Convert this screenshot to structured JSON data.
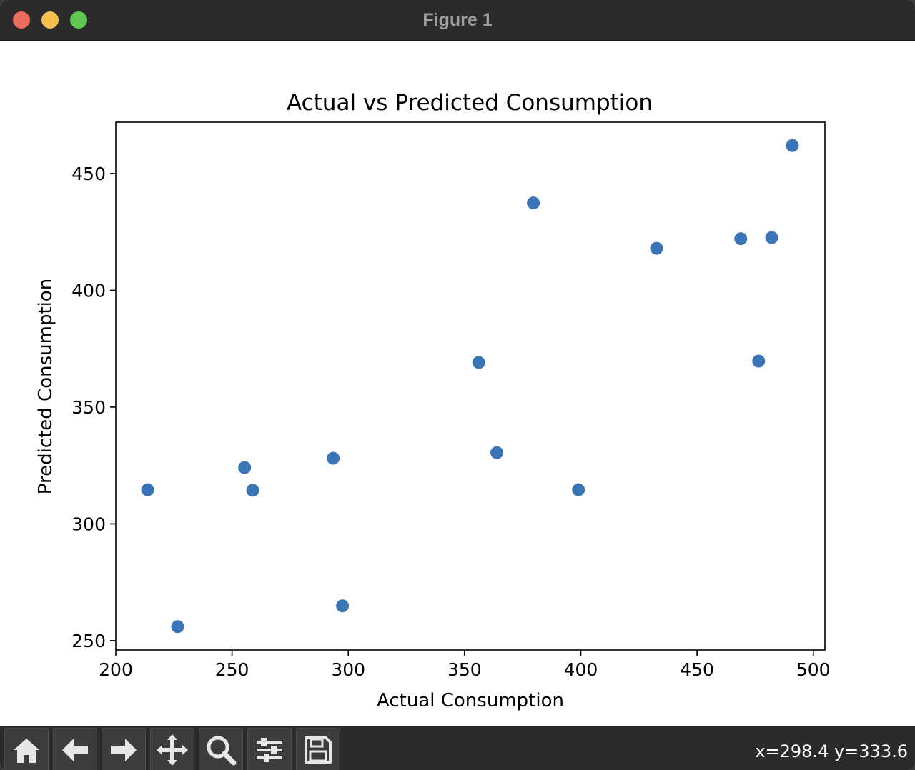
{
  "window": {
    "title": "Figure 1"
  },
  "toolbar": {
    "buttons": [
      {
        "name": "home-button",
        "icon": "home-icon"
      },
      {
        "name": "back-button",
        "icon": "arrow-left-icon"
      },
      {
        "name": "forward-button",
        "icon": "arrow-right-icon"
      },
      {
        "name": "pan-button",
        "icon": "move-icon"
      },
      {
        "name": "zoom-button",
        "icon": "magnifier-icon"
      },
      {
        "name": "configure-subplots-button",
        "icon": "sliders-icon"
      },
      {
        "name": "save-button",
        "icon": "floppy-disk-icon"
      }
    ],
    "coordinates": "x=298.4 y=333.6"
  },
  "chart_data": {
    "type": "scatter",
    "title": "Actual vs Predicted Consumption",
    "xlabel": "Actual Consumption",
    "ylabel": "Predicted Consumption",
    "xlim": [
      200,
      505
    ],
    "ylim": [
      246,
      472
    ],
    "xticks": [
      200,
      250,
      300,
      350,
      400,
      450,
      500
    ],
    "yticks": [
      250,
      300,
      350,
      400,
      450
    ],
    "grid": false,
    "marker_color": "#3a75b8",
    "points": [
      {
        "x": 213.7,
        "y": 314.6
      },
      {
        "x": 226.6,
        "y": 256.0
      },
      {
        "x": 255.4,
        "y": 324.1
      },
      {
        "x": 258.9,
        "y": 314.4
      },
      {
        "x": 293.5,
        "y": 328.1
      },
      {
        "x": 297.5,
        "y": 264.9
      },
      {
        "x": 356.1,
        "y": 369.1
      },
      {
        "x": 363.9,
        "y": 330.5
      },
      {
        "x": 379.6,
        "y": 437.4
      },
      {
        "x": 399.0,
        "y": 314.6
      },
      {
        "x": 432.6,
        "y": 418.0
      },
      {
        "x": 468.8,
        "y": 422.1
      },
      {
        "x": 476.5,
        "y": 369.7
      },
      {
        "x": 482.1,
        "y": 422.6
      },
      {
        "x": 491.0,
        "y": 462.0
      }
    ]
  }
}
